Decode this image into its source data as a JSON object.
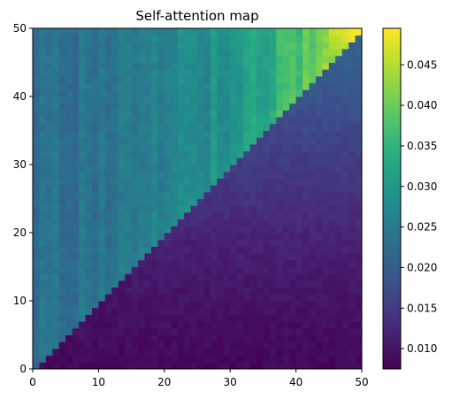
{
  "chart_data": {
    "type": "heatmap",
    "title": "Self-attention map",
    "xlabel": "",
    "ylabel": "",
    "xlim": [
      0,
      50
    ],
    "ylim": [
      0,
      50
    ],
    "grid_size": 50,
    "x_ticks": [
      "0",
      "10",
      "20",
      "30",
      "40",
      "50"
    ],
    "y_ticks": [
      "0",
      "10",
      "20",
      "30",
      "40",
      "50"
    ],
    "colormap": "viridis",
    "color_range": [
      0.0075,
      0.0495
    ],
    "colorbar_ticks": [
      "0.010",
      "0.015",
      "0.020",
      "0.025",
      "0.030",
      "0.035",
      "0.040",
      "0.045"
    ],
    "colorbar_tick_values": [
      0.01,
      0.015,
      0.02,
      0.025,
      0.03,
      0.035,
      0.04,
      0.045
    ],
    "value_model": {
      "upper_left_triangle_base": 0.0085,
      "upper_left_triangle_gain": 0.0135,
      "lower_right_triangle_base": 0.023,
      "lower_right_triangle_gain": 0.022,
      "top_right_corner_peak": 0.0495
    }
  }
}
